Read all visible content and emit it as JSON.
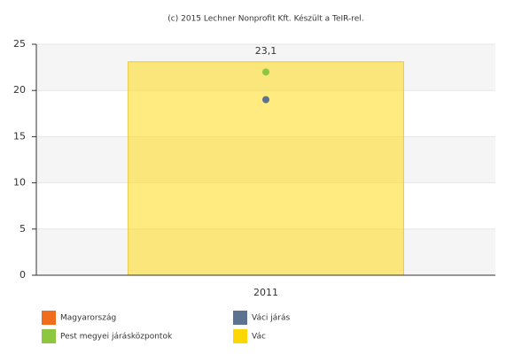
{
  "chart_data": {
    "type": "bar",
    "title": "(c) 2015 Lechner Nonprofit Kft. Készült a TeIR-rel.",
    "categories": [
      "2011"
    ],
    "series": [
      {
        "name": "Magyarország",
        "color": "#f26c1d",
        "mark": "point",
        "values": [
          null
        ]
      },
      {
        "name": "Váci járás",
        "color": "#5b7290",
        "mark": "point",
        "values": [
          19
        ]
      },
      {
        "name": "Pest megyei járásközpontok",
        "color": "#8dc63f",
        "mark": "point",
        "values": [
          22
        ]
      },
      {
        "name": "Vác",
        "color": "#ffd700",
        "mark": "bar",
        "values": [
          23.1
        ],
        "value_labels": [
          "23,1"
        ]
      }
    ],
    "ylim": [
      0,
      25
    ],
    "yticks": [
      0,
      5,
      10,
      15,
      20,
      25
    ],
    "grid": true
  }
}
